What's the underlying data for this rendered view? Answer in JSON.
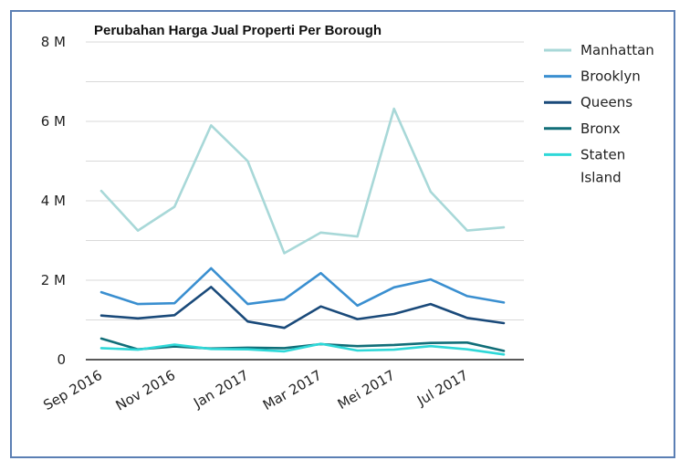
{
  "chart_data": {
    "type": "line",
    "title": "Perubahan Harga Jual Properti Per Borough",
    "xlabel": "",
    "ylabel": "",
    "ylim": [
      0,
      8000000
    ],
    "y_ticks": [
      {
        "value": 0,
        "label": "0"
      },
      {
        "value": 2000000,
        "label": "2 M"
      },
      {
        "value": 4000000,
        "label": "4 M"
      },
      {
        "value": 6000000,
        "label": "6 M"
      },
      {
        "value": 8000000,
        "label": "8 M"
      }
    ],
    "x": [
      "Sep 2016",
      "Okt 2016",
      "Nov 2016",
      "Des 2016",
      "Jan 2017",
      "Feb 2017",
      "Mar 2017",
      "Apr 2017",
      "Mei 2017",
      "Jun 2017",
      "Jul 2017",
      "Agu 2017"
    ],
    "x_tick_labels": [
      {
        "index": 0,
        "label": "Sep 2016"
      },
      {
        "index": 2,
        "label": "Nov 2016"
      },
      {
        "index": 4,
        "label": "Jan 2017"
      },
      {
        "index": 6,
        "label": "Mar 2017"
      },
      {
        "index": 8,
        "label": "Mei 2017"
      },
      {
        "index": 10,
        "label": "Jul 2017"
      }
    ],
    "grid": true,
    "legend_position": "right",
    "series": [
      {
        "name": "Manhattan",
        "color": "#a8d8d8",
        "values": [
          4250000,
          3250000,
          3850000,
          5900000,
          5000000,
          2680000,
          3200000,
          3100000,
          6320000,
          4230000,
          3250000,
          3330000
        ]
      },
      {
        "name": "Brooklyn",
        "color": "#3a8fd0",
        "values": [
          1700000,
          1400000,
          1420000,
          2300000,
          1400000,
          1520000,
          2180000,
          1360000,
          1820000,
          2020000,
          1600000,
          1440000
        ]
      },
      {
        "name": "Queens",
        "color": "#1a4a7a",
        "values": [
          1110000,
          1040000,
          1120000,
          1830000,
          960000,
          800000,
          1340000,
          1020000,
          1150000,
          1400000,
          1050000,
          920000
        ]
      },
      {
        "name": "Bronx",
        "color": "#116e78",
        "values": [
          530000,
          260000,
          330000,
          280000,
          300000,
          290000,
          390000,
          340000,
          370000,
          420000,
          430000,
          220000
        ]
      },
      {
        "name": "Staten Island",
        "legend_lines": [
          "Staten",
          "Island"
        ],
        "color": "#2ed8d8",
        "values": [
          290000,
          250000,
          380000,
          270000,
          260000,
          210000,
          400000,
          230000,
          250000,
          340000,
          260000,
          130000
        ]
      }
    ]
  }
}
